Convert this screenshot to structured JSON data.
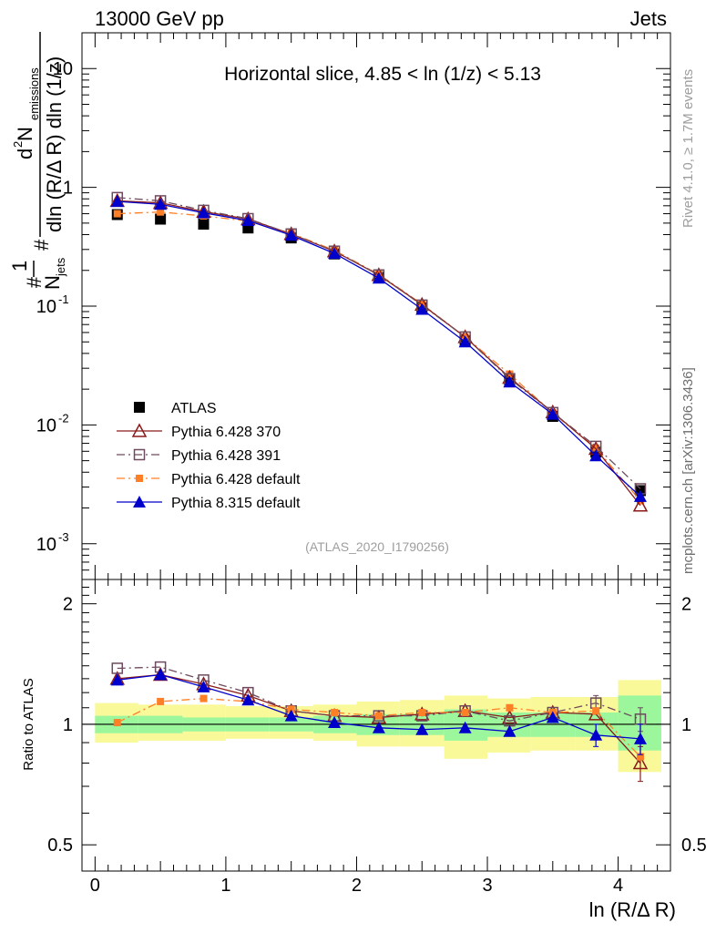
{
  "header": {
    "left": "13000 GeV pp",
    "right": "Jets"
  },
  "side_labels": {
    "rivet": "Rivet 4.1.0, ≥ 1.7M events",
    "mcplots": "mcplots.cern.ch [arXiv:1306.3436]"
  },
  "chart_data": [
    {
      "type": "line",
      "panel": "main",
      "title": "Horizontal slice, 4.85 < ln (1/z) < 5.13",
      "watermark": "(ATLAS_2020_I1790256)",
      "yscale": "log",
      "ylim": [
        0.0005,
        20
      ],
      "xlim": [
        -0.1,
        4.4
      ],
      "ylabel_parts": {
        "hash1": "#",
        "one": "1",
        "njets": "N",
        "njets_sub": "jets",
        "hash2": "#",
        "d2": "d",
        "d2_sup": "2",
        "n": " N",
        "n_sub": "emissions",
        "den": "dln (R/Δ R) dln (1/z)"
      },
      "xlabel": "ln (R/Δ R)",
      "x_ticks": [
        "0",
        "1",
        "2",
        "3",
        "4"
      ],
      "y_ticks": [
        {
          "base": "10",
          "exp": "-3",
          "value": 0.001
        },
        {
          "base": "10",
          "exp": "-2",
          "value": 0.01
        },
        {
          "base": "10",
          "exp": "-1",
          "value": 0.1
        },
        {
          "base": "1",
          "exp": "",
          "value": 1
        },
        {
          "base": "10",
          "exp": "",
          "value": 10
        }
      ],
      "x": [
        0.17,
        0.5,
        0.83,
        1.17,
        1.5,
        1.83,
        2.17,
        2.5,
        2.83,
        3.17,
        3.5,
        3.83,
        4.17
      ],
      "series": [
        {
          "name": "ATLAS",
          "color": "#000000",
          "marker": "square-filled",
          "line": "none",
          "values": [
            0.59,
            0.54,
            0.49,
            0.455,
            0.375,
            0.275,
            0.175,
            0.097,
            0.051,
            0.024,
            0.0118,
            0.0059,
            0.0028
          ]
        },
        {
          "name": "Pythia 6.428 370",
          "color": "#8b1a1a",
          "marker": "triangle-open",
          "line": "solid",
          "values": [
            0.77,
            0.74,
            0.625,
            0.54,
            0.405,
            0.29,
            0.183,
            0.103,
            0.055,
            0.025,
            0.0128,
            0.0063,
            0.0021
          ]
        },
        {
          "name": "Pythia 6.428 391",
          "color": "#6e4a5e",
          "marker": "square-open",
          "line": "dashdot",
          "values": [
            0.82,
            0.77,
            0.64,
            0.545,
            0.405,
            0.29,
            0.183,
            0.102,
            0.055,
            0.0245,
            0.0127,
            0.0066,
            0.0029
          ]
        },
        {
          "name": "Pythia 6.428 default",
          "color": "#ff7f27",
          "marker": "square-filled-small",
          "line": "dashdot",
          "values": [
            0.6,
            0.62,
            0.575,
            0.52,
            0.41,
            0.295,
            0.185,
            0.104,
            0.055,
            0.0268,
            0.0126,
            0.0064,
            0.0023
          ]
        },
        {
          "name": "Pythia 8.315 default",
          "color": "#0000cc",
          "marker": "triangle-filled",
          "line": "solid",
          "values": [
            0.76,
            0.72,
            0.61,
            0.525,
            0.395,
            0.278,
            0.172,
            0.094,
            0.05,
            0.023,
            0.0123,
            0.0055,
            0.0025
          ]
        }
      ]
    },
    {
      "type": "line",
      "panel": "ratio",
      "ylabel": "Ratio to ATLAS",
      "yscale": "log",
      "ylim": [
        0.43,
        2.3
      ],
      "y_ticks": [
        {
          "label": "0.5",
          "value": 0.5
        },
        {
          "label": "1",
          "value": 1
        },
        {
          "label": "2",
          "value": 2
        }
      ],
      "x": [
        0.17,
        0.5,
        0.83,
        1.17,
        1.5,
        1.83,
        2.17,
        2.5,
        2.83,
        3.17,
        3.5,
        3.83,
        4.17
      ],
      "bins": [
        [
          0,
          0.33
        ],
        [
          0.33,
          0.67
        ],
        [
          0.67,
          1.0
        ],
        [
          1.0,
          1.33
        ],
        [
          1.33,
          1.67
        ],
        [
          1.67,
          2.0
        ],
        [
          2.0,
          2.33
        ],
        [
          2.33,
          2.67
        ],
        [
          2.67,
          3.0
        ],
        [
          3.0,
          3.33
        ],
        [
          3.33,
          3.67
        ],
        [
          3.67,
          4.0
        ],
        [
          4.0,
          4.33
        ]
      ],
      "band_inner": [
        [
          0.95,
          1.05
        ],
        [
          0.95,
          1.05
        ],
        [
          0.96,
          1.04
        ],
        [
          0.96,
          1.04
        ],
        [
          0.96,
          1.04
        ],
        [
          0.95,
          1.05
        ],
        [
          0.94,
          1.06
        ],
        [
          0.94,
          1.06
        ],
        [
          0.91,
          1.09
        ],
        [
          0.93,
          1.07
        ],
        [
          0.93,
          1.07
        ],
        [
          0.93,
          1.07
        ],
        [
          0.86,
          1.18
        ]
      ],
      "band_outer": [
        [
          0.9,
          1.13
        ],
        [
          0.91,
          1.12
        ],
        [
          0.91,
          1.12
        ],
        [
          0.92,
          1.11
        ],
        [
          0.92,
          1.11
        ],
        [
          0.91,
          1.12
        ],
        [
          0.88,
          1.14
        ],
        [
          0.88,
          1.15
        ],
        [
          0.82,
          1.18
        ],
        [
          0.85,
          1.16
        ],
        [
          0.86,
          1.17
        ],
        [
          0.86,
          1.17
        ],
        [
          0.76,
          1.29
        ]
      ],
      "series": [
        {
          "name": "Pythia 6.428 370",
          "values": [
            1.3,
            1.33,
            1.26,
            1.18,
            1.08,
            1.05,
            1.04,
            1.06,
            1.08,
            1.04,
            1.07,
            1.06,
            0.8
          ]
        },
        {
          "name": "Pythia 6.428 391",
          "values": [
            1.38,
            1.39,
            1.29,
            1.2,
            1.08,
            1.05,
            1.05,
            1.05,
            1.08,
            1.02,
            1.07,
            1.13,
            1.03
          ]
        },
        {
          "name": "Pythia 6.428 default",
          "values": [
            1.01,
            1.14,
            1.16,
            1.14,
            1.09,
            1.07,
            1.05,
            1.07,
            1.07,
            1.1,
            1.07,
            1.08,
            0.83
          ]
        },
        {
          "name": "Pythia 8.315 default",
          "values": [
            1.29,
            1.33,
            1.24,
            1.15,
            1.05,
            1.01,
            0.98,
            0.97,
            0.98,
            0.96,
            1.04,
            0.94,
            0.92
          ]
        }
      ],
      "error_bars": {
        "Pythia 6.428 391": [
          [
            11,
            1.07,
            1.18
          ],
          [
            12,
            0.96,
            1.1
          ]
        ],
        "Pythia 8.315 default": [
          [
            11,
            0.88,
            1.0
          ],
          [
            12,
            0.84,
            1.0
          ]
        ],
        "Pythia 6.428 370": [
          [
            12,
            0.72,
            0.88
          ]
        ]
      }
    }
  ]
}
